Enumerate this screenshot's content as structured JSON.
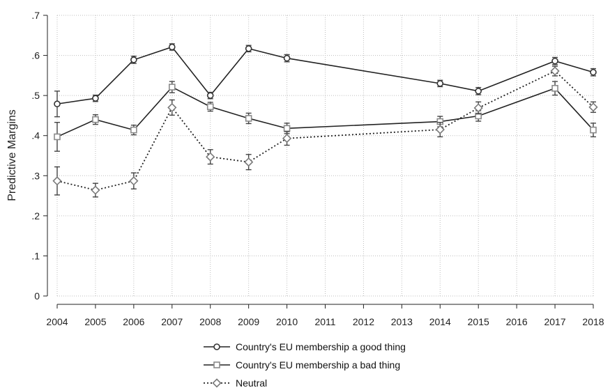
{
  "chart_data": {
    "type": "line",
    "title": "",
    "xlabel": "",
    "ylabel": "Predictive Margins",
    "xlim": [
      2004,
      2018
    ],
    "ylim": [
      0,
      0.7
    ],
    "x_ticks": [
      2004,
      2005,
      2006,
      2007,
      2008,
      2009,
      2010,
      2011,
      2012,
      2013,
      2014,
      2015,
      2016,
      2017,
      2018
    ],
    "x_tick_labels": [
      "2004",
      "2005",
      "2006",
      "2007",
      "2008",
      "2009",
      "2010",
      "2011",
      "2012",
      "2013",
      "2014",
      "2015",
      "2016",
      "2017",
      "2018"
    ],
    "y_ticks": [
      0,
      0.1,
      0.2,
      0.3,
      0.4,
      0.5,
      0.6,
      0.7
    ],
    "y_tick_labels": [
      "0",
      ".1",
      ".2",
      ".3",
      ".4",
      ".5",
      ".6",
      ".7"
    ],
    "grid": true,
    "legend_position": "bottom",
    "series": [
      {
        "name": "Country's EU membership a good thing",
        "marker": "circle",
        "line_style": "solid",
        "color": "#333333",
        "x": [
          2004,
          2005,
          2006,
          2007,
          2008,
          2009,
          2010,
          2014,
          2015,
          2017,
          2018
        ],
        "y": [
          0.479,
          0.493,
          0.589,
          0.621,
          0.5,
          0.617,
          0.593,
          0.53,
          0.511,
          0.586,
          0.558
        ],
        "ci_low": [
          0.447,
          0.485,
          0.58,
          0.613,
          0.492,
          0.609,
          0.584,
          0.522,
          0.502,
          0.577,
          0.549
        ],
        "ci_high": [
          0.511,
          0.501,
          0.598,
          0.629,
          0.508,
          0.625,
          0.602,
          0.538,
          0.52,
          0.595,
          0.567
        ]
      },
      {
        "name": "Country's EU membership a bad thing",
        "marker": "square",
        "line_style": "solid",
        "color": "#333333",
        "x": [
          2004,
          2005,
          2006,
          2007,
          2008,
          2009,
          2010,
          2014,
          2015,
          2017,
          2018
        ],
        "y": [
          0.397,
          0.44,
          0.414,
          0.521,
          0.472,
          0.443,
          0.418,
          0.435,
          0.449,
          0.518,
          0.414
        ],
        "ci_low": [
          0.361,
          0.428,
          0.402,
          0.507,
          0.461,
          0.43,
          0.405,
          0.422,
          0.436,
          0.501,
          0.397
        ],
        "ci_high": [
          0.433,
          0.452,
          0.426,
          0.535,
          0.483,
          0.456,
          0.431,
          0.448,
          0.462,
          0.535,
          0.431
        ]
      },
      {
        "name": "Neutral",
        "marker": "diamond",
        "line_style": "dotted",
        "color": "#555555",
        "x": [
          2004,
          2005,
          2006,
          2007,
          2008,
          2009,
          2010,
          2014,
          2015,
          2017,
          2018
        ],
        "y": [
          0.287,
          0.264,
          0.287,
          0.47,
          0.347,
          0.334,
          0.393,
          0.415,
          0.469,
          0.561,
          0.471
        ],
        "ci_low": [
          0.252,
          0.247,
          0.267,
          0.451,
          0.329,
          0.315,
          0.376,
          0.397,
          0.454,
          0.549,
          0.458
        ],
        "ci_high": [
          0.322,
          0.281,
          0.307,
          0.489,
          0.365,
          0.353,
          0.41,
          0.433,
          0.484,
          0.573,
          0.484
        ]
      }
    ]
  }
}
